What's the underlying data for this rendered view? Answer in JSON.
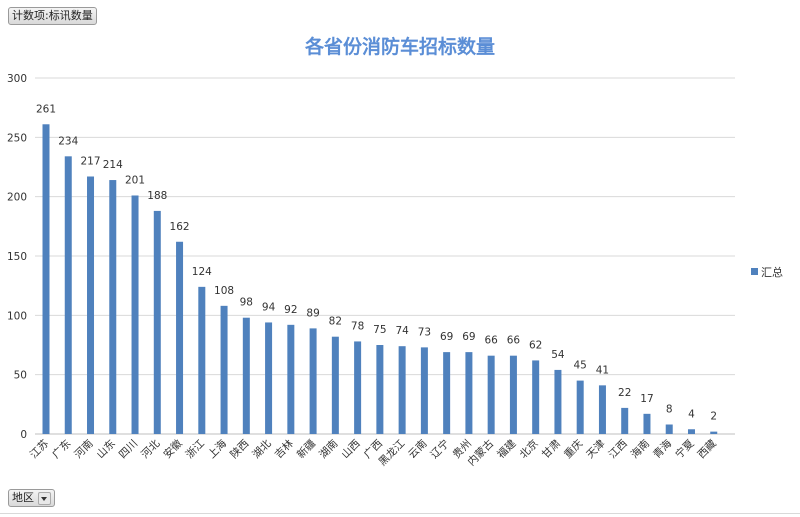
{
  "filters": {
    "value_field": "计数项:标讯数量",
    "axis_field": "地区"
  },
  "colors": {
    "bar": "#4f81bd",
    "title": "#5b8ed6",
    "grid": "#d9d9d9",
    "text": "#333333"
  },
  "chart_data": {
    "type": "bar",
    "title": "各省份消防车招标数量",
    "xlabel": "",
    "ylabel": "",
    "ylim": [
      0,
      300
    ],
    "yticks": [
      0,
      50,
      100,
      150,
      200,
      250,
      300
    ],
    "grid": true,
    "legend_position": "right",
    "categories": [
      "江苏",
      "广东",
      "河南",
      "山东",
      "四川",
      "河北",
      "安徽",
      "浙江",
      "上海",
      "陕西",
      "湖北",
      "吉林",
      "新疆",
      "湖南",
      "山西",
      "广西",
      "黑龙江",
      "云南",
      "辽宁",
      "贵州",
      "内蒙古",
      "福建",
      "北京",
      "甘肃",
      "重庆",
      "天津",
      "江西",
      "海南",
      "青海",
      "宁夏",
      "西藏"
    ],
    "series": [
      {
        "name": "汇总",
        "values": [
          261,
          234,
          217,
          214,
          201,
          188,
          162,
          124,
          108,
          98,
          94,
          92,
          89,
          82,
          78,
          75,
          74,
          73,
          69,
          69,
          66,
          66,
          62,
          54,
          45,
          41,
          22,
          17,
          8,
          4,
          2
        ]
      }
    ]
  }
}
